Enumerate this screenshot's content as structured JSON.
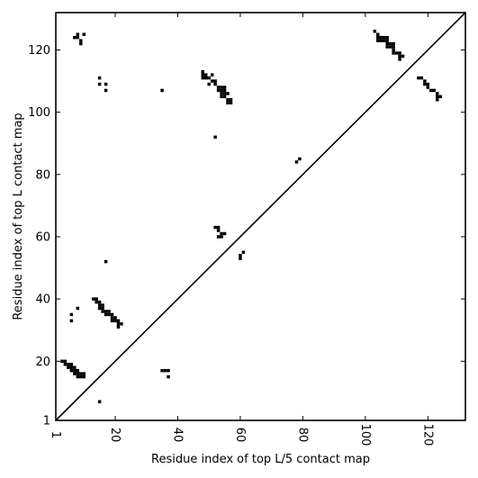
{
  "chart_data": {
    "type": "scatter",
    "title": "",
    "xlabel": "Residue index of top L/5 contact map",
    "ylabel": "Residue index of top L contact map",
    "xlim": [
      1,
      132
    ],
    "ylim": [
      1,
      132
    ],
    "x_ticks": [
      1,
      20,
      40,
      60,
      80,
      100,
      120
    ],
    "y_ticks": [
      1,
      20,
      40,
      60,
      80,
      100,
      120
    ],
    "x_tick_labels": [
      "1",
      "20",
      "40",
      "60",
      "80",
      "100",
      "120"
    ],
    "y_tick_labels": [
      "1",
      "20",
      "40",
      "60",
      "80",
      "100",
      "120"
    ],
    "grid": false,
    "marker_color": "#000000",
    "diagonal": {
      "from": [
        1,
        1
      ],
      "to": [
        132,
        132
      ]
    },
    "series": [
      {
        "values_are": "contacts above diagonal (top L)",
        "points": [
          [
            7,
            124
          ],
          [
            8,
            124
          ],
          [
            8,
            125
          ],
          [
            9,
            122
          ],
          [
            9,
            123
          ],
          [
            10,
            125
          ],
          [
            15,
            111
          ],
          [
            15,
            109
          ],
          [
            17,
            109
          ],
          [
            17,
            107
          ],
          [
            35,
            107
          ],
          [
            48,
            112
          ],
          [
            48,
            113
          ],
          [
            48,
            111
          ],
          [
            49,
            112
          ],
          [
            49,
            111
          ],
          [
            50,
            111
          ],
          [
            50,
            109
          ],
          [
            51,
            112
          ],
          [
            51,
            110
          ],
          [
            52,
            110
          ],
          [
            52,
            109
          ],
          [
            53,
            108
          ],
          [
            53,
            107
          ],
          [
            54,
            108
          ],
          [
            54,
            107
          ],
          [
            54,
            106
          ],
          [
            54,
            105
          ],
          [
            55,
            108
          ],
          [
            55,
            107
          ],
          [
            55,
            106
          ],
          [
            55,
            105
          ],
          [
            56,
            106
          ],
          [
            56,
            104
          ],
          [
            56,
            103
          ],
          [
            57,
            104
          ],
          [
            57,
            103
          ],
          [
            52,
            92
          ],
          [
            78,
            84
          ],
          [
            79,
            85
          ],
          [
            52,
            63
          ],
          [
            53,
            63
          ],
          [
            53,
            62
          ],
          [
            53,
            60
          ],
          [
            54,
            61
          ],
          [
            54,
            60
          ],
          [
            55,
            61
          ],
          [
            60,
            53
          ],
          [
            60,
            54
          ],
          [
            61,
            55
          ],
          [
            17,
            52
          ],
          [
            103,
            126
          ],
          [
            104,
            125
          ],
          [
            104,
            124
          ],
          [
            104,
            123
          ],
          [
            105,
            124
          ],
          [
            105,
            123
          ],
          [
            106,
            124
          ],
          [
            106,
            123
          ],
          [
            107,
            124
          ],
          [
            107,
            123
          ],
          [
            107,
            122
          ],
          [
            107,
            121
          ],
          [
            108,
            122
          ],
          [
            108,
            121
          ],
          [
            109,
            122
          ],
          [
            109,
            121
          ],
          [
            109,
            120
          ],
          [
            109,
            119
          ],
          [
            110,
            119
          ],
          [
            111,
            119
          ],
          [
            111,
            118
          ],
          [
            111,
            117
          ],
          [
            112,
            118
          ],
          [
            117,
            111
          ],
          [
            118,
            111
          ],
          [
            119,
            110
          ],
          [
            119,
            109
          ],
          [
            120,
            109
          ],
          [
            120,
            108
          ],
          [
            121,
            107
          ],
          [
            122,
            107
          ],
          [
            123,
            106
          ],
          [
            123,
            105
          ],
          [
            123,
            104
          ],
          [
            124,
            105
          ]
        ]
      },
      {
        "values_are": "contacts below diagonal (top L/5)",
        "points": [
          [
            13,
            40
          ],
          [
            14,
            40
          ],
          [
            14,
            39
          ],
          [
            15,
            39
          ],
          [
            15,
            38
          ],
          [
            15,
            37
          ],
          [
            16,
            38
          ],
          [
            16,
            37
          ],
          [
            16,
            36
          ],
          [
            17,
            36
          ],
          [
            17,
            35
          ],
          [
            18,
            36
          ],
          [
            18,
            35
          ],
          [
            19,
            35
          ],
          [
            19,
            34
          ],
          [
            19,
            33
          ],
          [
            20,
            34
          ],
          [
            20,
            33
          ],
          [
            21,
            33
          ],
          [
            21,
            32
          ],
          [
            21,
            31
          ],
          [
            22,
            32
          ],
          [
            8,
            37
          ],
          [
            6,
            35
          ],
          [
            6,
            33
          ],
          [
            3,
            20
          ],
          [
            4,
            20
          ],
          [
            4,
            19
          ],
          [
            5,
            19
          ],
          [
            5,
            18
          ],
          [
            6,
            19
          ],
          [
            6,
            18
          ],
          [
            6,
            17
          ],
          [
            7,
            18
          ],
          [
            7,
            17
          ],
          [
            7,
            16
          ],
          [
            8,
            17
          ],
          [
            8,
            16
          ],
          [
            8,
            15
          ],
          [
            9,
            16
          ],
          [
            9,
            15
          ],
          [
            10,
            16
          ],
          [
            10,
            15
          ],
          [
            15,
            7
          ],
          [
            35,
            17
          ],
          [
            36,
            17
          ],
          [
            37,
            17
          ],
          [
            37,
            15
          ]
        ]
      }
    ]
  }
}
